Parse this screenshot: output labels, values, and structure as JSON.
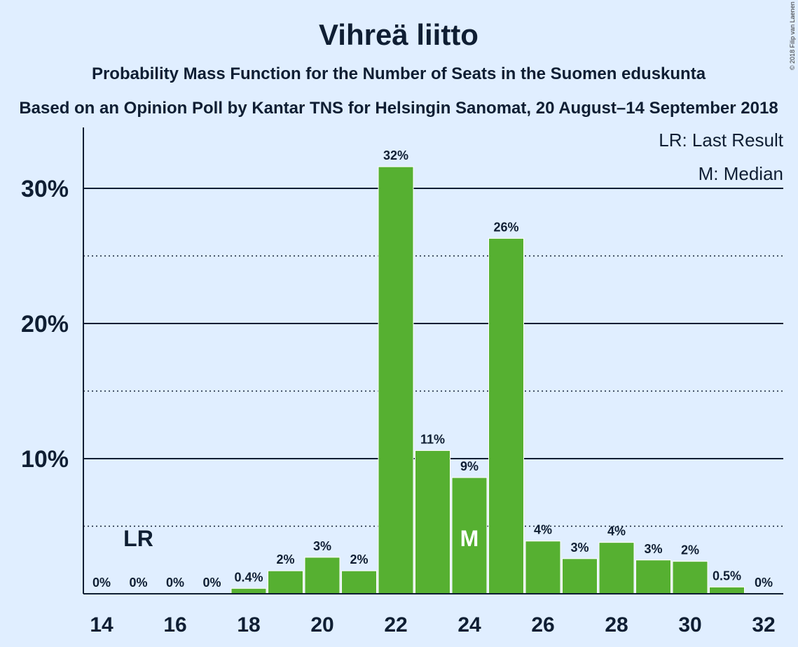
{
  "chart_data": {
    "type": "bar",
    "title": "Vihreä liitto",
    "subtitle": "Probability Mass Function for the Number of Seats in the Suomen eduskunta",
    "subtitle2": "Based on an Opinion Poll by Kantar TNS for Helsingin Sanomat, 20 August–14 September 2018",
    "x": [
      14,
      15,
      16,
      17,
      18,
      19,
      20,
      21,
      22,
      23,
      24,
      25,
      26,
      27,
      28,
      29,
      30,
      31,
      32
    ],
    "values": [
      0,
      0,
      0,
      0,
      0.4,
      1.7,
      2.7,
      1.7,
      31.6,
      10.6,
      8.6,
      26.3,
      3.9,
      2.6,
      3.8,
      2.5,
      2.4,
      0.5,
      0
    ],
    "labels": [
      "0%",
      "0%",
      "0%",
      "0%",
      "0.4%",
      "2%",
      "3%",
      "2%",
      "32%",
      "11%",
      "9%",
      "26%",
      "4%",
      "3%",
      "4%",
      "3%",
      "2%",
      "0.5%",
      "0%"
    ],
    "xticks": [
      14,
      16,
      18,
      20,
      22,
      24,
      26,
      28,
      30,
      32
    ],
    "yticks": [
      {
        "value": 10,
        "label": "10%"
      },
      {
        "value": 20,
        "label": "20%"
      },
      {
        "value": 30,
        "label": "30%"
      }
    ],
    "ydotted": [
      5,
      15,
      25
    ],
    "ylim": [
      0,
      34
    ],
    "last_result_seat": 15,
    "last_result_marker": "LR",
    "median_seat": 24,
    "median_marker": "M",
    "legend": [
      "LR: Last Result",
      "M: Median"
    ],
    "bar_color": "#56b031",
    "copyright": "© 2018 Filip van Laenen"
  }
}
